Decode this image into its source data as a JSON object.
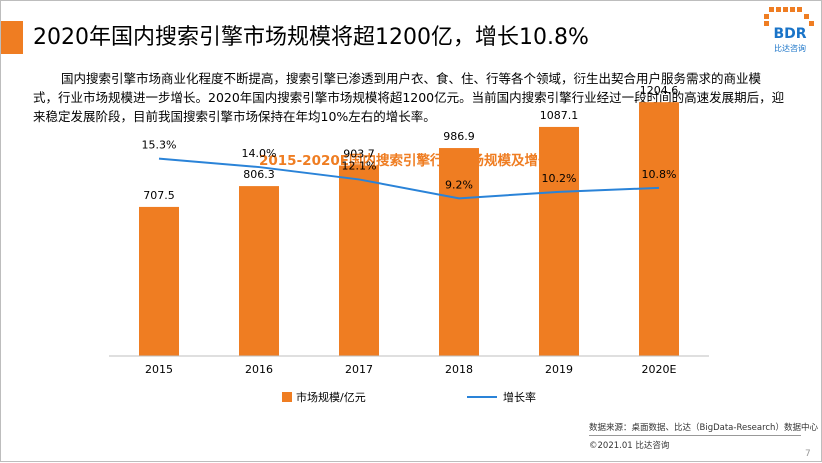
{
  "title": "2020年国内搜索引擎市场规模将超1200亿，增长10.8%",
  "description": "国内搜索引擎市场商业化程度不断提高，搜索引擎已渗透到用户衣、食、住、行等各个领域，衍生出契合用户服务需求的商业模式，行业市场规模进一步增长。2020年国内搜索引擎市场规模将超1200亿元。当前国内搜索引擎行业经过一段时间的高速发展期后，迎来稳定发展阶段，目前我国搜索引擎市场保持在年均10%左右的增长率。",
  "logo": {
    "text": "BDR",
    "caption": "比达咨询"
  },
  "chart_data": {
    "type": "bar",
    "title": "2015-2020E国内搜索引擎行业市场规模及增长率",
    "categories": [
      "2015",
      "2016",
      "2017",
      "2018",
      "2019",
      "2020E"
    ],
    "series": [
      {
        "name": "市场规模/亿元",
        "type": "bar",
        "values": [
          707.5,
          806.3,
          903.7,
          986.9,
          1087.1,
          1204.6
        ],
        "labels": [
          "707.5",
          "806.3",
          "903.7",
          "986.9",
          "1087.1",
          "1204.6"
        ],
        "color": "#ef7d22"
      },
      {
        "name": "增长率",
        "type": "line",
        "values": [
          15.3,
          14.0,
          12.1,
          9.2,
          10.2,
          10.8
        ],
        "labels": [
          "15.3%",
          "14.0%",
          "12.1%",
          "9.2%",
          "10.2%",
          "10.8%"
        ],
        "color": "#2a83d8"
      }
    ],
    "bar_axis": [
      0,
      1400
    ],
    "line_axis": [
      -15,
      18
    ],
    "legend_position": "bottom",
    "grid": false
  },
  "source": "数据来源：桌面数据、比达（BigData-Research）数据中心",
  "copyright": "©2021.01 比达咨询",
  "page_number": "7"
}
